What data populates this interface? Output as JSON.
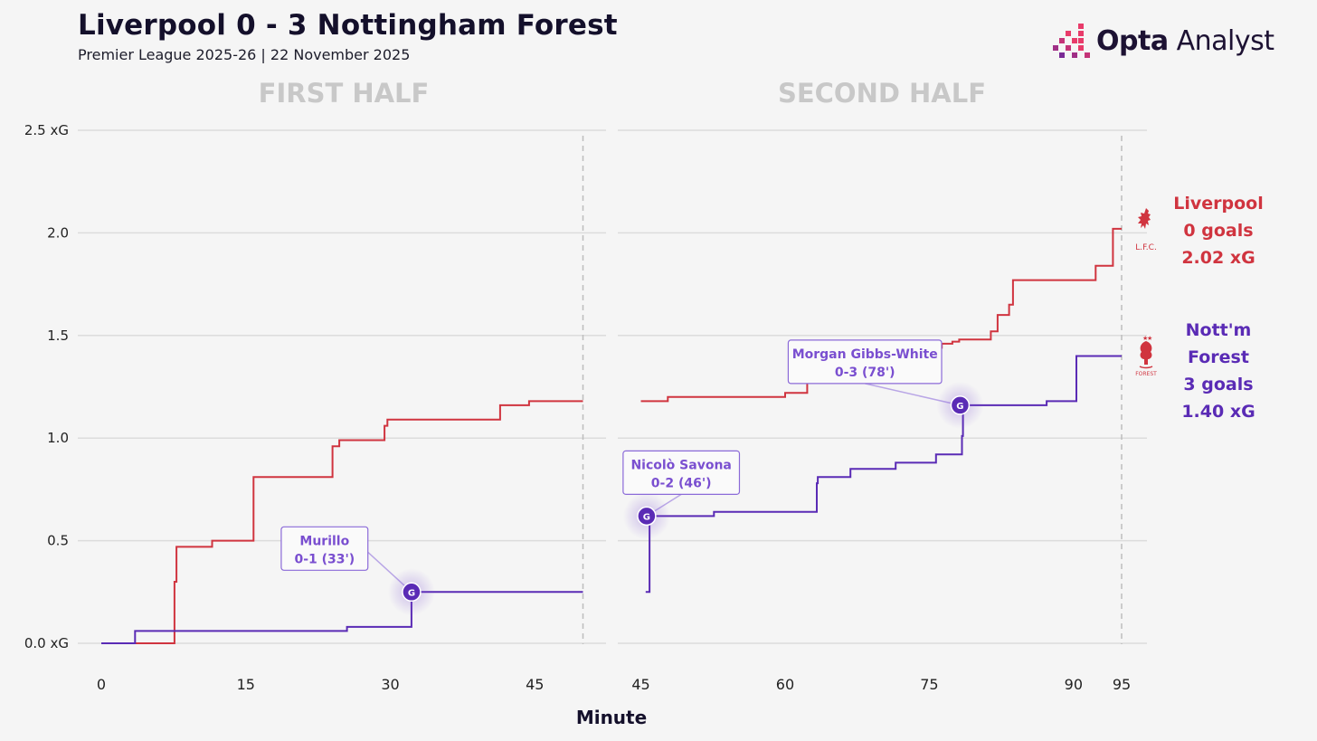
{
  "header": {
    "title": "Liverpool 0 - 3 Nottingham Forest",
    "subtitle": "Premier League 2025-26 | 22 November 2025",
    "brand_bold": "Opta",
    "brand_rest": " Analyst"
  },
  "colors": {
    "liverpool": "#d0343f",
    "forest": "#5a2bb5",
    "annotation_text": "#7a4fd0",
    "grid": "#dcdcdc",
    "panel_title": "#c8c8c8"
  },
  "teams": {
    "liverpool": {
      "name": "Liverpool",
      "goals": "0 goals",
      "xg": "2.02 xG",
      "crest_text": "L.F.C.",
      "icon": "liverbird-crest-icon"
    },
    "forest": {
      "name": "Nott'm Forest",
      "goals": "3 goals",
      "xg": "1.40 xG",
      "crest_text": "FOREST",
      "icon": "forest-tree-crest-icon"
    }
  },
  "chart_data": {
    "type": "line",
    "step": true,
    "xlabel": "Minute",
    "ylim": [
      0,
      2.5
    ],
    "yticks": [
      0,
      0.5,
      1.0,
      1.5,
      2.0,
      2.5
    ],
    "ytick_labels": [
      "0.0 xG",
      "0.5",
      "1.0",
      "1.5",
      "2.0",
      "2.5 xG"
    ],
    "panels": [
      {
        "title": "FIRST HALF",
        "xlim": [
          0,
          50
        ],
        "xticks": [
          0,
          15,
          30,
          45
        ],
        "end_marker": 50,
        "series": [
          {
            "name": "Liverpool",
            "points": [
              [
                0,
                0
              ],
              [
                7.6,
                0
              ],
              [
                7.6,
                0.3
              ],
              [
                7.8,
                0.3
              ],
              [
                7.8,
                0.47
              ],
              [
                11.5,
                0.47
              ],
              [
                11.5,
                0.5
              ],
              [
                15.8,
                0.5
              ],
              [
                15.8,
                0.81
              ],
              [
                24,
                0.81
              ],
              [
                24,
                0.96
              ],
              [
                24.7,
                0.96
              ],
              [
                24.7,
                0.99
              ],
              [
                29.4,
                0.99
              ],
              [
                29.4,
                1.06
              ],
              [
                29.7,
                1.06
              ],
              [
                29.7,
                1.09
              ],
              [
                41.4,
                1.09
              ],
              [
                41.4,
                1.16
              ],
              [
                44.4,
                1.16
              ],
              [
                44.4,
                1.18
              ],
              [
                50,
                1.18
              ]
            ]
          },
          {
            "name": "Nott'm Forest",
            "points": [
              [
                0,
                0
              ],
              [
                3.5,
                0
              ],
              [
                3.5,
                0.06
              ],
              [
                25.5,
                0.06
              ],
              [
                25.5,
                0.08
              ],
              [
                32.2,
                0.08
              ],
              [
                32.2,
                0.25
              ],
              [
                50,
                0.25
              ]
            ]
          }
        ],
        "goals": [
          {
            "minute": 32.2,
            "xg": 0.25,
            "scorer": "Murillo",
            "score": "0-1 (33')"
          }
        ]
      },
      {
        "title": "SECOND HALF",
        "xlim": [
          45,
          96.5
        ],
        "xticks": [
          45,
          60,
          75,
          90,
          95
        ],
        "end_marker": 95,
        "series": [
          {
            "name": "Liverpool",
            "points": [
              [
                45,
                1.18
              ],
              [
                47.8,
                1.18
              ],
              [
                47.8,
                1.2
              ],
              [
                60,
                1.2
              ],
              [
                60,
                1.22
              ],
              [
                62.3,
                1.22
              ],
              [
                62.3,
                1.34
              ],
              [
                64.5,
                1.34
              ],
              [
                64.5,
                1.38
              ],
              [
                67.8,
                1.38
              ],
              [
                67.8,
                1.41
              ],
              [
                74.3,
                1.41
              ],
              [
                74.3,
                1.44
              ],
              [
                76.3,
                1.44
              ],
              [
                76.3,
                1.46
              ],
              [
                77.4,
                1.46
              ],
              [
                77.4,
                1.47
              ],
              [
                78.1,
                1.47
              ],
              [
                78.1,
                1.48
              ],
              [
                81.4,
                1.48
              ],
              [
                81.4,
                1.52
              ],
              [
                82.1,
                1.52
              ],
              [
                82.1,
                1.6
              ],
              [
                83.3,
                1.6
              ],
              [
                83.3,
                1.65
              ],
              [
                83.7,
                1.65
              ],
              [
                83.7,
                1.77
              ],
              [
                92.3,
                1.77
              ],
              [
                92.3,
                1.84
              ],
              [
                94.1,
                1.84
              ],
              [
                94.1,
                2.02
              ],
              [
                95,
                2.02
              ]
            ]
          },
          {
            "name": "Nott'm Forest",
            "points": [
              [
                45.5,
                0.25
              ],
              [
                45.9,
                0.25
              ],
              [
                45.9,
                0.62
              ],
              [
                52.6,
                0.62
              ],
              [
                52.6,
                0.64
              ],
              [
                63.3,
                0.64
              ],
              [
                63.3,
                0.78
              ],
              [
                63.4,
                0.78
              ],
              [
                63.4,
                0.81
              ],
              [
                66.8,
                0.81
              ],
              [
                66.8,
                0.85
              ],
              [
                71.5,
                0.85
              ],
              [
                71.5,
                0.88
              ],
              [
                75.7,
                0.88
              ],
              [
                75.7,
                0.92
              ],
              [
                78.4,
                0.92
              ],
              [
                78.4,
                1.01
              ],
              [
                78.5,
                1.01
              ],
              [
                78.5,
                1.16
              ],
              [
                87.2,
                1.16
              ],
              [
                87.2,
                1.18
              ],
              [
                90.3,
                1.18
              ],
              [
                90.3,
                1.4
              ],
              [
                95,
                1.4
              ]
            ]
          }
        ],
        "goals": [
          {
            "minute": 45.6,
            "xg": 0.62,
            "scorer": "Nicolò Savona",
            "score": "0-2 (46')"
          },
          {
            "minute": 78.2,
            "xg": 1.16,
            "scorer": "Morgan Gibbs-White",
            "score": "0-3 (78')"
          }
        ]
      }
    ],
    "goal_marker_label": "G",
    "legend": "right"
  }
}
